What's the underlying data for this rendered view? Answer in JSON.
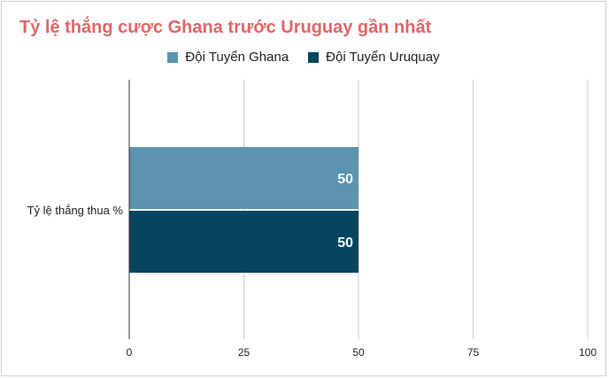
{
  "chart_data": {
    "type": "bar",
    "orientation": "horizontal",
    "title": "Tỷ lệ thắng cược Ghana trước Uruguay gần nhất",
    "categories": [
      "Tỷ lệ thắng thua %"
    ],
    "series": [
      {
        "name": "Đội Tuyển Ghana",
        "values": [
          50
        ],
        "color": "#5b93b0"
      },
      {
        "name": "Đội Tuyển Uruquay",
        "values": [
          50
        ],
        "color": "#044560"
      }
    ],
    "xlim": [
      0,
      100
    ],
    "x_ticks": [
      "0",
      "25",
      "50",
      "75",
      "100"
    ],
    "x_tick_values": [
      0,
      25,
      50,
      75,
      100
    ],
    "grid": true,
    "legend_position": "top",
    "title_color": "#e06666"
  }
}
